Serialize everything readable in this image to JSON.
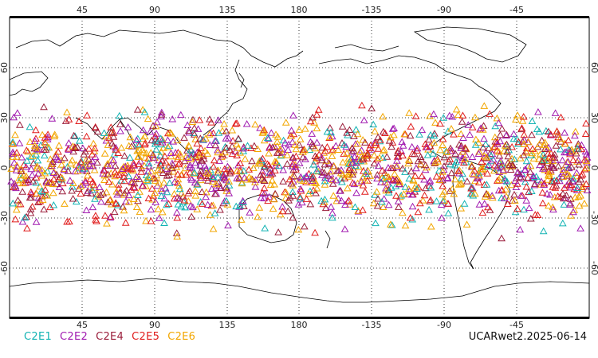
{
  "colors": {
    "C2E1": "#12b3b3",
    "C2E2": "#a11bb0",
    "C2E4": "#9a1d3a",
    "C2E5": "#e01d1d",
    "C2E6": "#f2a600",
    "background": "#ffffff",
    "coastline": "#000000",
    "grid": "#000000"
  },
  "map": {
    "projection": "cylindrical equidistant",
    "center_longitude": 180,
    "lon_range": [
      0,
      360
    ],
    "lat_range": [
      -90,
      90
    ],
    "grid_style": "dotted",
    "lon_labels": [
      "45",
      "90",
      "135",
      "180",
      "-135",
      "-90",
      "-45"
    ],
    "lat_labels": [
      "60",
      "30",
      "0",
      "-30",
      "-60"
    ],
    "marker": "triangle"
  },
  "legend": {
    "items": [
      {
        "label": "C2E1",
        "color": "#12b3b3"
      },
      {
        "label": "C2E2",
        "color": "#a11bb0"
      },
      {
        "label": "C2E4",
        "color": "#9a1d3a"
      },
      {
        "label": "C2E5",
        "color": "#e01d1d"
      },
      {
        "label": "C2E6",
        "color": "#f2a600"
      }
    ]
  },
  "footer": {
    "label": "UCARwet2.2025-06-14"
  }
}
